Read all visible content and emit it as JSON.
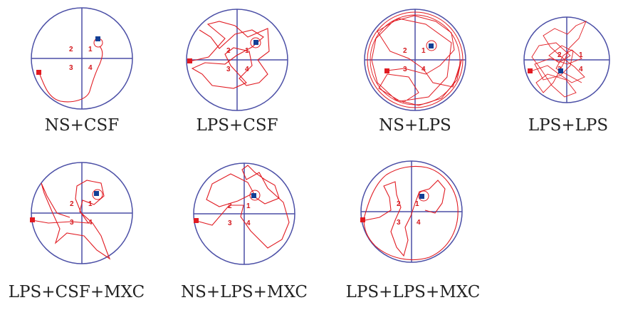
{
  "colors": {
    "pool_outline": "#4b4fa6",
    "quadrant_lines": "#4b4fa6",
    "path": "#e11b22",
    "start_marker": "#e11b22",
    "platform": "#123f95"
  },
  "quadrant_labels": [
    "1",
    "2",
    "3",
    "4"
  ],
  "panels": [
    {
      "caption": "NS+CSF"
    },
    {
      "caption": "LPS+CSF"
    },
    {
      "caption": "NS+LPS"
    },
    {
      "caption": "LPS+LPS"
    },
    {
      "caption": "LPS+CSF+MXC"
    },
    {
      "caption": "NS+LPS+MXC"
    },
    {
      "caption": "LPS+LPS+MXC"
    }
  ]
}
